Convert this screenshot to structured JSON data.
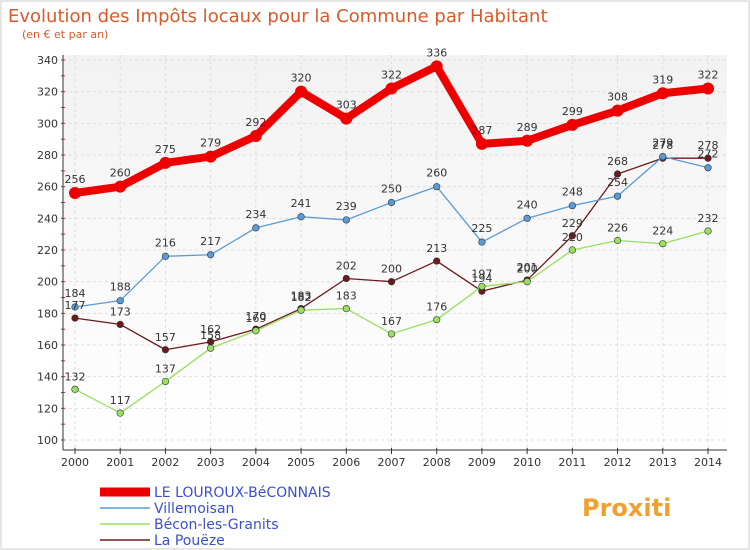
{
  "chart_data": {
    "type": "line",
    "title": "Evolution des Impôts locaux pour la Commune par Habitant",
    "subtitle": "(en € et par an)",
    "x": [
      "2000",
      "2001",
      "2002",
      "2003",
      "2004",
      "2005",
      "2006",
      "2007",
      "2008",
      "2009",
      "2010",
      "2011",
      "2012",
      "2013",
      "2014"
    ],
    "ylim": [
      100,
      340
    ],
    "yticks": [
      100,
      120,
      140,
      160,
      180,
      200,
      220,
      240,
      260,
      280,
      300,
      320,
      340
    ],
    "grid": true,
    "legend_position": "bottom-left",
    "series": [
      {
        "name": "LE LOUROUX-BéCONNAIS",
        "color": "#ee0000",
        "values": [
          256,
          260,
          275,
          279,
          292,
          320,
          303,
          322,
          336,
          287,
          289,
          299,
          308,
          319,
          322
        ]
      },
      {
        "name": "Villemoisan",
        "color": "#5b9bd5",
        "values": [
          184,
          188,
          216,
          217,
          234,
          241,
          239,
          250,
          260,
          225,
          240,
          248,
          254,
          279,
          272
        ]
      },
      {
        "name": "Bécon-les-Granits",
        "color": "#99e060",
        "values": [
          132,
          117,
          137,
          158,
          169,
          182,
          183,
          167,
          176,
          197,
          200,
          220,
          226,
          224,
          232
        ]
      },
      {
        "name": "La Pouëze",
        "color": "#6b1a1a",
        "values": [
          177,
          173,
          157,
          162,
          170,
          183,
          202,
          200,
          213,
          194,
          201,
          229,
          268,
          278,
          278
        ]
      }
    ]
  },
  "watermark": {
    "text": "Proxiti"
  }
}
